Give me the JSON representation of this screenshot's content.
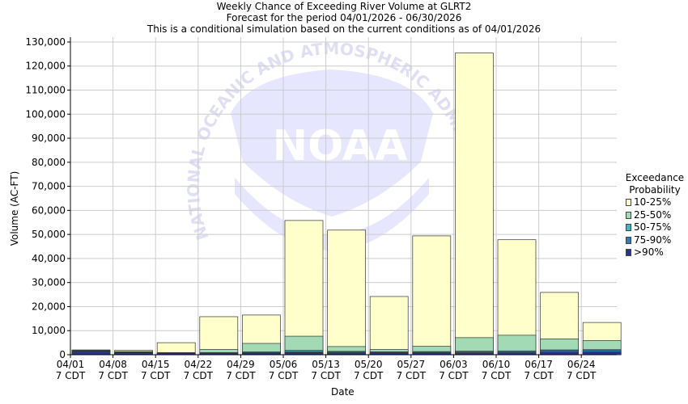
{
  "titles": {
    "line1": "Weekly Chance of Exceeding River Volume at GLRT2",
    "line2": "Forecast for the period 04/01/2026 - 06/30/2026",
    "line3": "This is a conditional simulation based on the current conditions as of 04/01/2026"
  },
  "watermark": {
    "text": "NOAA",
    "ring_text": "NATIONAL OCEANIC AND ATMOSPHERIC ADMINISTRATION"
  },
  "legend": {
    "title_line1": "Exceedance",
    "title_line2": "Probability",
    "items": [
      {
        "label": "10-25%",
        "color": "#ffffcc"
      },
      {
        "label": "25-50%",
        "color": "#a1dab4"
      },
      {
        "label": "50-75%",
        "color": "#41b6c4"
      },
      {
        "label": "75-90%",
        "color": "#2c7fb8"
      },
      {
        "label": ">90%",
        "color": "#253494"
      }
    ]
  },
  "chart_data": {
    "type": "bar",
    "stacked": true,
    "title": "Weekly Chance of Exceeding River Volume at GLRT2",
    "xlabel": "Date",
    "ylabel": "Volume (AC-FT)",
    "ylim": [
      0,
      132000
    ],
    "yticks": [
      0,
      10000,
      20000,
      30000,
      40000,
      50000,
      60000,
      70000,
      80000,
      90000,
      100000,
      110000,
      120000,
      130000
    ],
    "ytick_labels": [
      "0",
      "10,000",
      "20,000",
      "30,000",
      "40,000",
      "50,000",
      "60,000",
      "70,000",
      "80,000",
      "90,000",
      "100,000",
      "110,000",
      "120,000",
      "130,000"
    ],
    "x_tick_labels": [
      [
        "04/01",
        "7 CDT"
      ],
      [
        "04/08",
        "7 CDT"
      ],
      [
        "04/15",
        "7 CDT"
      ],
      [
        "04/22",
        "7 CDT"
      ],
      [
        "04/29",
        "7 CDT"
      ],
      [
        "05/06",
        "7 CDT"
      ],
      [
        "05/13",
        "7 CDT"
      ],
      [
        "05/20",
        "7 CDT"
      ],
      [
        "05/27",
        "7 CDT"
      ],
      [
        "06/03",
        "7 CDT"
      ],
      [
        "06/10",
        "7 CDT"
      ],
      [
        "06/17",
        "7 CDT"
      ],
      [
        "06/24",
        "7 CDT"
      ]
    ],
    "grid": true,
    "legend_position": "right",
    "series_order": [
      "10-25%",
      "25-50%",
      "50-75%",
      "75-90%",
      ">90%"
    ],
    "weeks": [
      {
        "date": "04/01",
        "10-25%": 2000,
        "25-50%": 1800,
        "50-75%": 1700,
        "75-90%": 1600,
        ">90%": 1500
      },
      {
        "date": "04/08",
        "10-25%": 1800,
        "25-50%": 1300,
        "50-75%": 1100,
        "75-90%": 1000,
        ">90%": 900
      },
      {
        "date": "04/15",
        "10-25%": 5000,
        "25-50%": 900,
        "50-75%": 700,
        "75-90%": 600,
        ">90%": 500
      },
      {
        "date": "04/22",
        "10-25%": 15800,
        "25-50%": 2200,
        "50-75%": 900,
        "75-90%": 700,
        ">90%": 500
      },
      {
        "date": "04/29",
        "10-25%": 16500,
        "25-50%": 4700,
        "50-75%": 1200,
        "75-90%": 900,
        ">90%": 600
      },
      {
        "date": "05/06",
        "10-25%": 55800,
        "25-50%": 7700,
        "50-75%": 1800,
        "75-90%": 1300,
        ">90%": 900
      },
      {
        "date": "05/13",
        "10-25%": 51800,
        "25-50%": 3400,
        "50-75%": 1400,
        "75-90%": 1100,
        ">90%": 800
      },
      {
        "date": "05/20",
        "10-25%": 24200,
        "25-50%": 2200,
        "50-75%": 1200,
        "75-90%": 1000,
        ">90%": 700
      },
      {
        "date": "05/27",
        "10-25%": 49400,
        "25-50%": 3500,
        "50-75%": 1300,
        "75-90%": 1000,
        ">90%": 700
      },
      {
        "date": "06/03",
        "10-25%": 125400,
        "25-50%": 7100,
        "50-75%": 1500,
        "75-90%": 1100,
        ">90%": 800
      },
      {
        "date": "06/10",
        "10-25%": 47800,
        "25-50%": 8100,
        "50-75%": 1600,
        "75-90%": 1200,
        ">90%": 800
      },
      {
        "date": "06/17",
        "10-25%": 25900,
        "25-50%": 6600,
        "50-75%": 2000,
        "75-90%": 1700,
        ">90%": 1100
      },
      {
        "date": "06/24",
        "10-25%": 13400,
        "25-50%": 5900,
        "50-75%": 2100,
        "75-90%": 1800,
        ">90%": 1200
      }
    ]
  }
}
